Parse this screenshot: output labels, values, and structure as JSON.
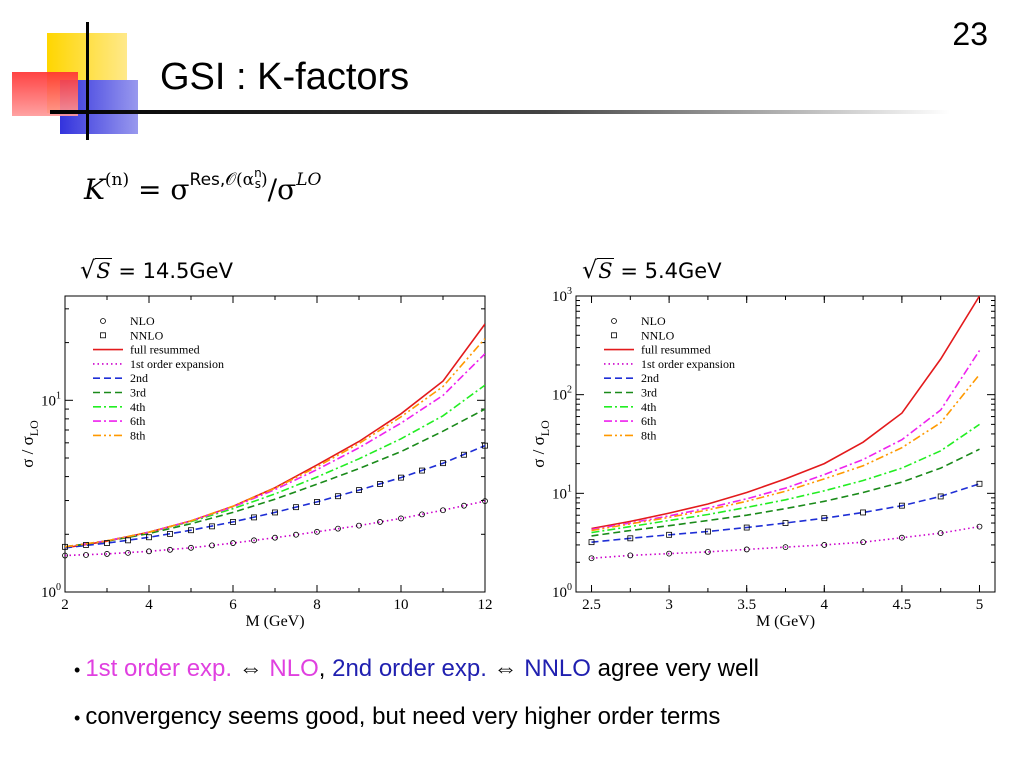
{
  "slide": {
    "number": "23",
    "title": "GSI : K-factors",
    "formula": {
      "K": "K",
      "n_sup": "(n)",
      "eq": " = σ",
      "res_sup_res": "Res,",
      "res_sup_O": "𝒪(α",
      "res_sup_n": "n",
      "res_sup_s": "s",
      "res_sup_close": ")",
      "slash": "/σ",
      "lo_sup": "LO"
    }
  },
  "colors": {
    "nlo": "#000000",
    "nnlo": "#000000",
    "full_resummed": "#e31a1c",
    "first_order": "#cc00cc",
    "second": "#1f2fd6",
    "third": "#1a8a1a",
    "fourth": "#22ee22",
    "sixth": "#ee22ee",
    "eighth": "#ff9900"
  },
  "chart_data": [
    {
      "type": "line",
      "energy_label": {
        "pre": "√",
        "S": "S",
        "post": " = 14.5GeV"
      },
      "xlabel": "M (GeV)",
      "ylabel": "σ / σLO",
      "ylabel_main": "σ / σ",
      "ylabel_sub": "LO",
      "yscale": "log",
      "xlim": [
        2,
        12
      ],
      "ylim": [
        1,
        35
      ],
      "xticks": [
        2,
        4,
        6,
        8,
        10,
        12
      ],
      "yticks": [
        {
          "base": "10",
          "exp": "0",
          "value": 1
        },
        {
          "base": "10",
          "exp": "1",
          "value": 10
        }
      ],
      "legend_position": "top-left",
      "legend": [
        "NLO",
        "NNLO",
        "full resummed",
        "1st order expansion",
        "2nd",
        "3rd",
        "4th",
        "6th",
        "8th"
      ],
      "series": [
        {
          "name": "full resummed",
          "style": "solid",
          "color_key": "full_resummed",
          "x": [
            2,
            3,
            4,
            5,
            6,
            7,
            8,
            9,
            10,
            11,
            12
          ],
          "values": [
            1.7,
            1.84,
            2.05,
            2.35,
            2.8,
            3.5,
            4.6,
            6.1,
            8.5,
            12.6,
            25
          ]
        },
        {
          "name": "1st order expansion",
          "style": "dotted",
          "color_key": "first_order",
          "x": [
            2,
            3,
            4,
            5,
            6,
            7,
            8,
            9,
            10,
            11,
            12
          ],
          "values": [
            1.55,
            1.58,
            1.63,
            1.7,
            1.8,
            1.92,
            2.06,
            2.22,
            2.42,
            2.67,
            2.98
          ]
        },
        {
          "name": "2nd",
          "style": "dashed",
          "color_key": "second",
          "x": [
            2,
            3,
            4,
            5,
            6,
            7,
            8,
            9,
            10,
            11,
            12
          ],
          "values": [
            1.7,
            1.8,
            1.93,
            2.1,
            2.32,
            2.6,
            2.95,
            3.4,
            3.95,
            4.7,
            5.8
          ]
        },
        {
          "name": "3rd",
          "style": "dashed",
          "color_key": "third",
          "x": [
            2,
            3,
            4,
            5,
            6,
            7,
            8,
            9,
            10,
            11,
            12
          ],
          "values": [
            1.72,
            1.84,
            2.02,
            2.27,
            2.6,
            3.05,
            3.65,
            4.4,
            5.4,
            6.9,
            9.0
          ]
        },
        {
          "name": "4th",
          "style": "dashdot",
          "color_key": "fourth",
          "x": [
            2,
            3,
            4,
            5,
            6,
            7,
            8,
            9,
            10,
            11,
            12
          ],
          "values": [
            1.72,
            1.85,
            2.05,
            2.33,
            2.72,
            3.25,
            3.98,
            4.95,
            6.3,
            8.3,
            12.0
          ]
        },
        {
          "name": "6th",
          "style": "dashdot",
          "color_key": "sixth",
          "x": [
            2,
            3,
            4,
            5,
            6,
            7,
            8,
            9,
            10,
            11,
            12
          ],
          "values": [
            1.72,
            1.85,
            2.05,
            2.35,
            2.78,
            3.42,
            4.35,
            5.65,
            7.6,
            10.6,
            17.5
          ]
        },
        {
          "name": "8th",
          "style": "dashdotdot",
          "color_key": "eighth",
          "x": [
            2,
            3,
            4,
            5,
            6,
            7,
            8,
            9,
            10,
            11,
            12
          ],
          "values": [
            1.72,
            1.85,
            2.05,
            2.35,
            2.8,
            3.48,
            4.5,
            5.95,
            8.2,
            11.8,
            21
          ]
        }
      ],
      "markers": [
        {
          "name": "NLO",
          "shape": "circle",
          "x": [
            2,
            2.5,
            3,
            3.5,
            4,
            4.5,
            5,
            5.5,
            6,
            6.5,
            7,
            7.5,
            8,
            8.5,
            9,
            9.5,
            10,
            10.5,
            11,
            11.5,
            12
          ],
          "values": [
            1.55,
            1.56,
            1.58,
            1.6,
            1.63,
            1.66,
            1.7,
            1.75,
            1.8,
            1.86,
            1.92,
            1.99,
            2.06,
            2.14,
            2.22,
            2.32,
            2.42,
            2.54,
            2.67,
            2.82,
            2.98
          ]
        },
        {
          "name": "NNLO",
          "shape": "square",
          "x": [
            2,
            2.5,
            3,
            3.5,
            4,
            4.5,
            5,
            5.5,
            6,
            6.5,
            7,
            7.5,
            8,
            8.5,
            9,
            9.5,
            10,
            10.5,
            11,
            11.5,
            12
          ],
          "values": [
            1.72,
            1.76,
            1.8,
            1.86,
            1.93,
            2.01,
            2.1,
            2.2,
            2.32,
            2.45,
            2.6,
            2.77,
            2.95,
            3.16,
            3.4,
            3.66,
            3.95,
            4.3,
            4.7,
            5.2,
            5.8
          ]
        }
      ]
    },
    {
      "type": "line",
      "energy_label": {
        "pre": "√",
        "S": "S",
        "post": " = 5.4GeV"
      },
      "xlabel": "M (GeV)",
      "ylabel": "σ / σLO",
      "ylabel_main": "σ / σ",
      "ylabel_sub": "LO",
      "yscale": "log",
      "xlim": [
        2.4,
        5.1
      ],
      "ylim": [
        1,
        1000
      ],
      "xticks": [
        2.5,
        3,
        3.5,
        4,
        4.5,
        5
      ],
      "yticks": [
        {
          "base": "10",
          "exp": "0",
          "value": 1
        },
        {
          "base": "10",
          "exp": "1",
          "value": 10
        },
        {
          "base": "10",
          "exp": "2",
          "value": 100
        },
        {
          "base": "10",
          "exp": "3",
          "value": 1000
        }
      ],
      "legend_position": "top-left",
      "legend": [
        "NLO",
        "NNLO",
        "full resummed",
        "1st order expansion",
        "2nd",
        "3rd",
        "4th",
        "6th",
        "8th"
      ],
      "series": [
        {
          "name": "full resummed",
          "style": "solid",
          "color_key": "full_resummed",
          "x": [
            2.5,
            2.75,
            3,
            3.25,
            3.5,
            3.75,
            4,
            4.25,
            4.5,
            4.75,
            5
          ],
          "values": [
            4.4,
            5.2,
            6.3,
            7.8,
            10.2,
            14,
            20,
            33,
            65,
            230,
            1000
          ]
        },
        {
          "name": "1st order expansion",
          "style": "dotted",
          "color_key": "first_order",
          "x": [
            2.5,
            2.75,
            3,
            3.25,
            3.5,
            3.75,
            4,
            4.25,
            4.5,
            4.75,
            5
          ],
          "values": [
            2.2,
            2.35,
            2.45,
            2.55,
            2.7,
            2.85,
            3.0,
            3.2,
            3.55,
            3.95,
            4.6
          ]
        },
        {
          "name": "2nd",
          "style": "dashed",
          "color_key": "second",
          "x": [
            2.5,
            2.75,
            3,
            3.25,
            3.5,
            3.75,
            4,
            4.25,
            4.5,
            4.75,
            5
          ],
          "values": [
            3.2,
            3.5,
            3.8,
            4.1,
            4.5,
            5.0,
            5.6,
            6.4,
            7.5,
            9.3,
            12.5
          ]
        },
        {
          "name": "3rd",
          "style": "dashed",
          "color_key": "third",
          "x": [
            2.5,
            2.75,
            3,
            3.25,
            3.5,
            3.75,
            4,
            4.25,
            4.5,
            4.75,
            5
          ],
          "values": [
            3.7,
            4.2,
            4.7,
            5.3,
            6.0,
            7.0,
            8.3,
            10.2,
            13,
            18,
            28
          ]
        },
        {
          "name": "4th",
          "style": "dashdot",
          "color_key": "fourth",
          "x": [
            2.5,
            2.75,
            3,
            3.25,
            3.5,
            3.75,
            4,
            4.25,
            4.5,
            4.75,
            5
          ],
          "values": [
            4.0,
            4.6,
            5.3,
            6.1,
            7.2,
            8.6,
            10.6,
            13.5,
            18,
            27,
            50
          ]
        },
        {
          "name": "6th",
          "style": "dashdot",
          "color_key": "sixth",
          "x": [
            2.5,
            2.75,
            3,
            3.25,
            3.5,
            3.75,
            4,
            4.25,
            4.5,
            4.75,
            5
          ],
          "values": [
            4.3,
            5.0,
            5.9,
            7.1,
            8.8,
            11.3,
            15.5,
            22,
            35,
            70,
            280
          ]
        },
        {
          "name": "8th",
          "style": "dashdotdot",
          "color_key": "eighth",
          "x": [
            2.5,
            2.75,
            3,
            3.25,
            3.5,
            3.75,
            4,
            4.25,
            4.5,
            4.75,
            5
          ],
          "values": [
            4.2,
            4.9,
            5.7,
            6.8,
            8.3,
            10.5,
            14,
            19,
            29,
            52,
            160
          ]
        }
      ],
      "markers": [
        {
          "name": "NLO",
          "shape": "circle",
          "x": [
            2.5,
            2.75,
            3,
            3.25,
            3.5,
            3.75,
            4,
            4.25,
            4.5,
            4.75,
            5
          ],
          "values": [
            2.2,
            2.35,
            2.45,
            2.55,
            2.7,
            2.85,
            3.0,
            3.2,
            3.55,
            3.95,
            4.6
          ]
        },
        {
          "name": "NNLO",
          "shape": "square",
          "x": [
            2.5,
            2.75,
            3,
            3.25,
            3.5,
            3.75,
            4,
            4.25,
            4.5,
            4.75,
            5
          ],
          "values": [
            3.2,
            3.5,
            3.8,
            4.1,
            4.5,
            5.0,
            5.6,
            6.4,
            7.5,
            9.3,
            12.5
          ]
        }
      ]
    }
  ],
  "bullets": [
    {
      "bullet": "•",
      "parts": [
        {
          "text": "1st order exp.",
          "cls": "pink"
        },
        {
          "text": " ⇔ ",
          "cls": ""
        },
        {
          "text": "NLO",
          "cls": "pink"
        },
        {
          "text": ",  ",
          "cls": ""
        },
        {
          "text": "2nd order exp.",
          "cls": "navy"
        },
        {
          "text": " ⇔ ",
          "cls": ""
        },
        {
          "text": "NNLO",
          "cls": "navy"
        },
        {
          "text": " agree very well",
          "cls": ""
        }
      ]
    },
    {
      "bullet": "•",
      "parts": [
        {
          "text": " convergency seems good, but need very higher order terms",
          "cls": ""
        }
      ]
    }
  ]
}
